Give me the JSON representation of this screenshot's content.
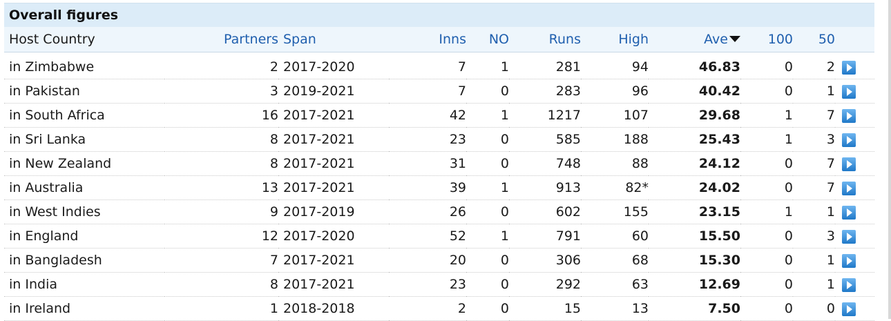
{
  "title": "Overall figures",
  "columns": {
    "host": "Host Country",
    "partners": "Partners",
    "span": "Span",
    "inns": "Inns",
    "no": "NO",
    "runs": "Runs",
    "high": "High",
    "ave": "Ave",
    "hundreds": "100",
    "fifties": "50"
  },
  "sort_icon": "triangle-down-icon",
  "row_action_icon": "play-arrow-icon",
  "colors": {
    "header_link": "#1f5fae",
    "title_bg": "#dcecf8",
    "action_icon": "#1f78c8"
  },
  "rows": [
    {
      "host": "in Zimbabwe",
      "partners": "2",
      "span": "2017-2020",
      "inns": "7",
      "no": "1",
      "runs": "281",
      "high": "94",
      "ave": "46.83",
      "hundreds": "0",
      "fifties": "2"
    },
    {
      "host": "in Pakistan",
      "partners": "3",
      "span": "2019-2021",
      "inns": "7",
      "no": "0",
      "runs": "283",
      "high": "96",
      "ave": "40.42",
      "hundreds": "0",
      "fifties": "1"
    },
    {
      "host": "in South Africa",
      "partners": "16",
      "span": "2017-2021",
      "inns": "42",
      "no": "1",
      "runs": "1217",
      "high": "107",
      "ave": "29.68",
      "hundreds": "1",
      "fifties": "7"
    },
    {
      "host": "in Sri Lanka",
      "partners": "8",
      "span": "2017-2021",
      "inns": "23",
      "no": "0",
      "runs": "585",
      "high": "188",
      "ave": "25.43",
      "hundreds": "1",
      "fifties": "3"
    },
    {
      "host": "in New Zealand",
      "partners": "8",
      "span": "2017-2021",
      "inns": "31",
      "no": "0",
      "runs": "748",
      "high": "88",
      "ave": "24.12",
      "hundreds": "0",
      "fifties": "7"
    },
    {
      "host": "in Australia",
      "partners": "13",
      "span": "2017-2021",
      "inns": "39",
      "no": "1",
      "runs": "913",
      "high": "82*",
      "ave": "24.02",
      "hundreds": "0",
      "fifties": "7"
    },
    {
      "host": "in West Indies",
      "partners": "9",
      "span": "2017-2019",
      "inns": "26",
      "no": "0",
      "runs": "602",
      "high": "155",
      "ave": "23.15",
      "hundreds": "1",
      "fifties": "1"
    },
    {
      "host": "in England",
      "partners": "12",
      "span": "2017-2020",
      "inns": "52",
      "no": "1",
      "runs": "791",
      "high": "60",
      "ave": "15.50",
      "hundreds": "0",
      "fifties": "3"
    },
    {
      "host": "in Bangladesh",
      "partners": "7",
      "span": "2017-2021",
      "inns": "20",
      "no": "0",
      "runs": "306",
      "high": "68",
      "ave": "15.30",
      "hundreds": "0",
      "fifties": "1"
    },
    {
      "host": "in India",
      "partners": "8",
      "span": "2017-2021",
      "inns": "23",
      "no": "0",
      "runs": "292",
      "high": "63",
      "ave": "12.69",
      "hundreds": "0",
      "fifties": "1"
    },
    {
      "host": "in Ireland",
      "partners": "1",
      "span": "2018-2018",
      "inns": "2",
      "no": "0",
      "runs": "15",
      "high": "13",
      "ave": "7.50",
      "hundreds": "0",
      "fifties": "0"
    }
  ]
}
